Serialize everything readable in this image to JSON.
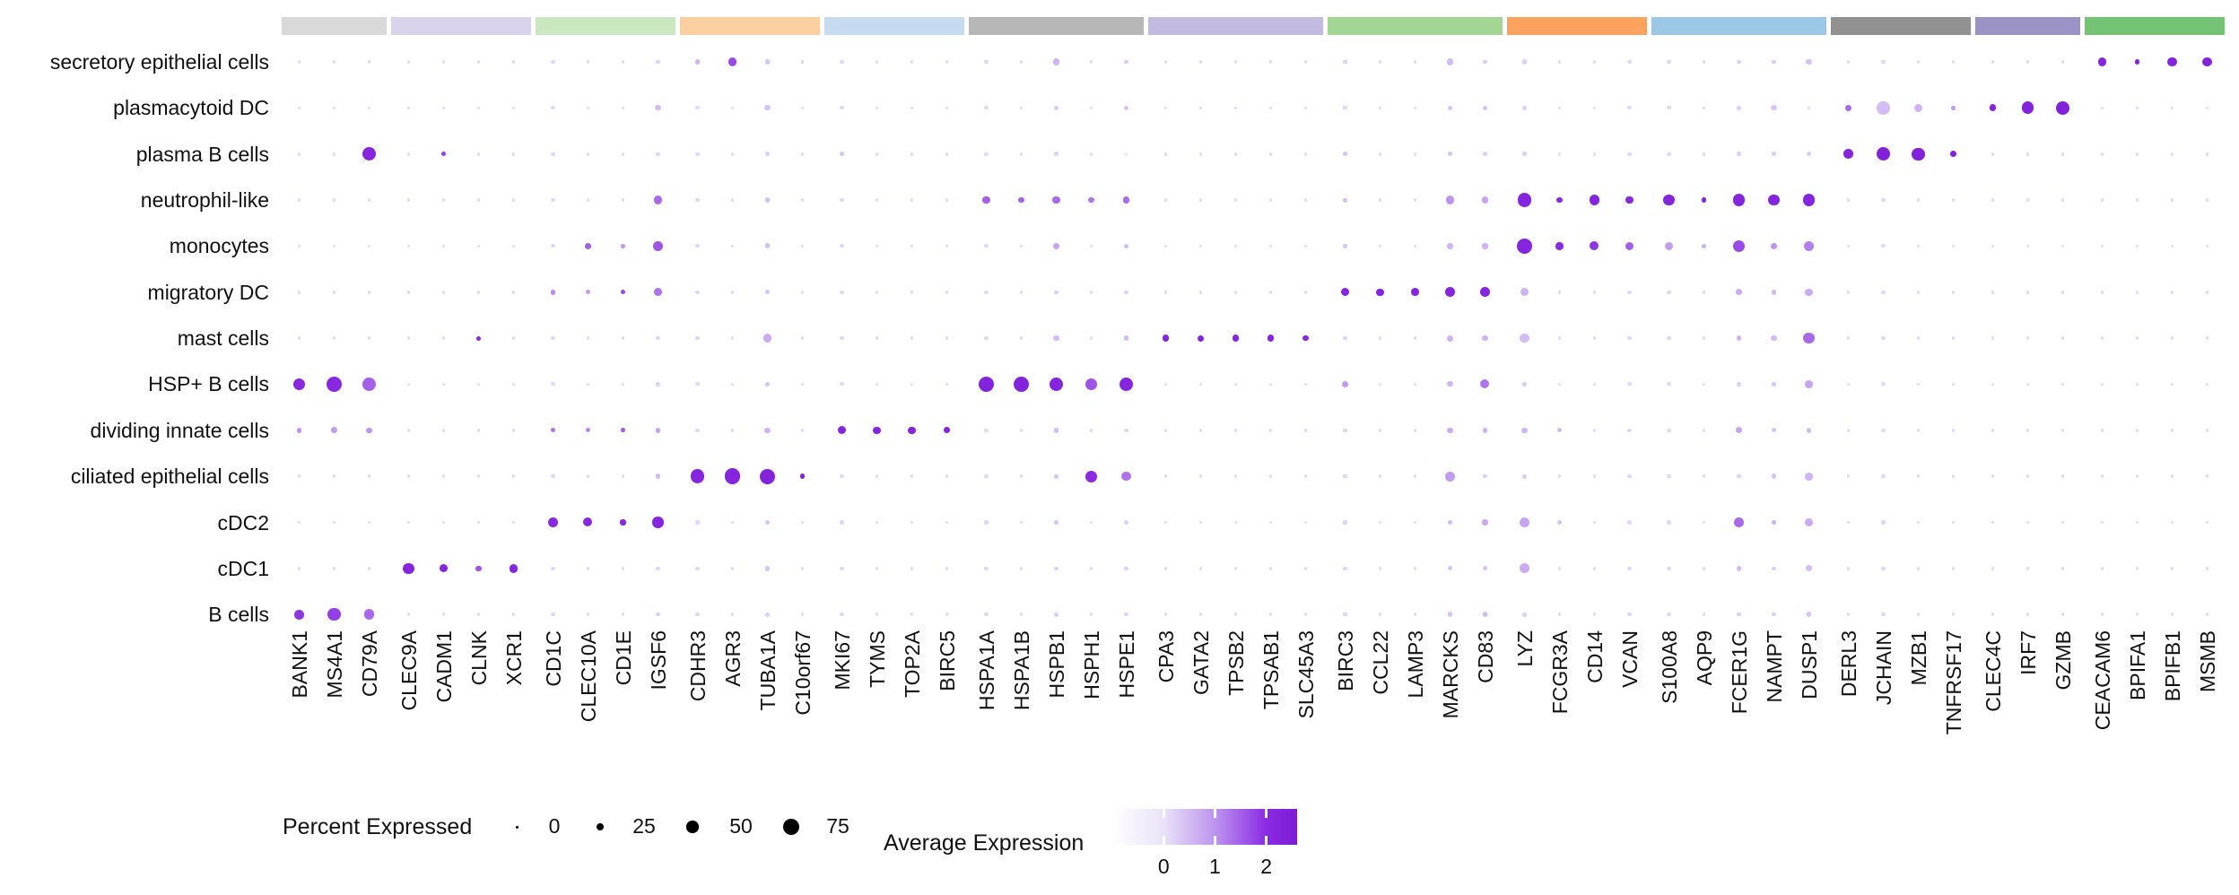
{
  "chart_data": {
    "type": "dotplot",
    "title": "",
    "xlabel": "",
    "ylabel": "",
    "rows_top_to_bottom": [
      "secretory epithelial cells",
      "plasmacytoid DC",
      "plasma B cells",
      "neutrophil-like",
      "monocytes",
      "migratory DC",
      "mast cells",
      "HSP+ B cells",
      "dividing innate cells",
      "ciliated epithelial cells",
      "cDC2",
      "cDC1",
      "B cells"
    ],
    "gene_groups": [
      {
        "color": "#d9d9d9",
        "genes": [
          "BANK1",
          "MS4A1",
          "CD79A"
        ]
      },
      {
        "color": "#d8d3ea",
        "genes": [
          "CLEC9A",
          "CADM1",
          "CLNK",
          "XCR1"
        ]
      },
      {
        "color": "#c9e7c0",
        "genes": [
          "CD1C",
          "CLEC10A",
          "CD1E",
          "IGSF6"
        ]
      },
      {
        "color": "#fbcfa0",
        "genes": [
          "CDHR3",
          "AGR3",
          "TUBA1A",
          "C10orf67"
        ]
      },
      {
        "color": "#c6dbf0",
        "genes": [
          "MKI67",
          "TYMS",
          "TOP2A",
          "BIRC5"
        ]
      },
      {
        "color": "#b7b7b7",
        "genes": [
          "HSPA1A",
          "HSPA1B",
          "HSPB1",
          "HSPH1",
          "HSPE1"
        ]
      },
      {
        "color": "#c2bbdf",
        "genes": [
          "CPA3",
          "GATA2",
          "TPSB2",
          "TPSAB1",
          "SLC45A3"
        ]
      },
      {
        "color": "#a3d694",
        "genes": [
          "BIRC3",
          "CCL22",
          "LAMP3",
          "MARCKS",
          "CD83"
        ]
      },
      {
        "color": "#fba35e",
        "genes": [
          "LYZ",
          "FCGR3A",
          "CD14",
          "VCAN"
        ]
      },
      {
        "color": "#9bc8e6",
        "genes": [
          "S100A8",
          "AQP9",
          "FCER1G",
          "NAMPT",
          "DUSP1"
        ]
      },
      {
        "color": "#919191",
        "genes": [
          "DERL3",
          "JCHAIN",
          "MZB1",
          "TNFRSF17"
        ]
      },
      {
        "color": "#9b93c6",
        "genes": [
          "CLEC4C",
          "IRF7",
          "GZMB"
        ]
      },
      {
        "color": "#74c374",
        "genes": [
          "CEACAM6",
          "BPIFA1",
          "BPIFB1",
          "MSMB"
        ]
      }
    ],
    "cell_values_note": "cells hold [percent_expressed, average_expression]; unlisted cells fall back to column_background then background",
    "background": [
      3,
      0.12
    ],
    "column_background": {
      "TUBA1A": [
        9,
        0.3
      ],
      "MARCKS": [
        9,
        0.3
      ],
      "DUSP1": [
        10,
        0.3
      ],
      "LYZ": [
        7,
        0.25
      ],
      "NAMPT": [
        7,
        0.25
      ],
      "CD83": [
        7,
        0.25
      ],
      "HSPB1": [
        7,
        0.25
      ],
      "HSPE1": [
        6,
        0.2
      ],
      "IGSF6": [
        6,
        0.2
      ],
      "FCER1G": [
        7,
        0.25
      ],
      "HSPA1A": [
        5,
        0.15
      ],
      "JCHAIN": [
        5,
        0.15
      ],
      "BIRC3": [
        5,
        0.2
      ],
      "MKI67": [
        5,
        0.15
      ],
      "CD1C": [
        5,
        0.15
      ],
      "CDHR3": [
        5,
        0.15
      ],
      "VCAN": [
        5,
        0.15
      ],
      "S100A8": [
        5,
        0.15
      ]
    },
    "cells": {
      "secretory epithelial cells": {
        "CDHR3": [
          10,
          0.6
        ],
        "AGR3": [
          32,
          1.7
        ],
        "TUBA1A": [
          13,
          0.4
        ],
        "C10orf67": [
          4,
          0.2
        ],
        "HSPB1": [
          20,
          0.6
        ],
        "HSPE1": [
          8,
          0.3
        ],
        "MARCKS": [
          20,
          0.5
        ],
        "CD83": [
          8,
          0.3
        ],
        "LYZ": [
          10,
          0.3
        ],
        "DUSP1": [
          18,
          0.4
        ],
        "NAMPT": [
          8,
          0.3
        ],
        "CEACAM6": [
          33,
          2.2
        ],
        "BPIFA1": [
          13,
          2.2
        ],
        "BPIFB1": [
          36,
          2.2
        ],
        "MSMB": [
          37,
          2.3
        ]
      },
      "plasmacytoid DC": {
        "IGSF6": [
          15,
          0.5
        ],
        "TUBA1A": [
          16,
          0.4
        ],
        "HSPB1": [
          10,
          0.3
        ],
        "HSPE1": [
          12,
          0.4
        ],
        "MARCKS": [
          13,
          0.4
        ],
        "CD83": [
          12,
          0.4
        ],
        "NAMPT": [
          16,
          0.4
        ],
        "DUSP1": [
          10,
          -0.2
        ],
        "LYZ": [
          8,
          0.25
        ],
        "DERL3": [
          22,
          1.4
        ],
        "JCHAIN": [
          60,
          0.5
        ],
        "MZB1": [
          32,
          0.6
        ],
        "TNFRSF17": [
          8,
          0.9
        ],
        "CLEC4C": [
          24,
          2.2
        ],
        "IRF7": [
          52,
          2.3
        ],
        "GZMB": [
          58,
          2.4
        ]
      },
      "plasma B cells": {
        "CD79A": [
          60,
          2.2
        ],
        "CADM1": [
          10,
          1.8
        ],
        "MKI67": [
          9,
          0.4
        ],
        "HSPE1": [
          6,
          -0.3
        ],
        "BIRC3": [
          9,
          0.4
        ],
        "MARCKS": [
          11,
          0.4
        ],
        "DUSP1": [
          11,
          0.3
        ],
        "DERL3": [
          38,
          2.2
        ],
        "JCHAIN": [
          58,
          2.4
        ],
        "MZB1": [
          55,
          2.4
        ],
        "TNFRSF17": [
          22,
          2.3
        ]
      },
      "neutrophil-like": {
        "IGSF6": [
          30,
          1.4
        ],
        "TUBA1A": [
          14,
          0.5
        ],
        "HSPA1A": [
          26,
          1.5
        ],
        "HSPA1B": [
          18,
          1.5
        ],
        "HSPB1": [
          26,
          1.4
        ],
        "HSPH1": [
          18,
          1.3
        ],
        "HSPE1": [
          24,
          1.4
        ],
        "BIRC3": [
          10,
          0.5
        ],
        "MARCKS": [
          30,
          1.0
        ],
        "CD83": [
          22,
          0.8
        ],
        "LYZ": [
          62,
          2.2
        ],
        "FCGR3A": [
          18,
          2.1
        ],
        "CD14": [
          40,
          2.2
        ],
        "VCAN": [
          28,
          2.1
        ],
        "S100A8": [
          48,
          2.2
        ],
        "AQP9": [
          14,
          2.2
        ],
        "FCER1G": [
          52,
          2.2
        ],
        "NAMPT": [
          48,
          2.2
        ],
        "DUSP1": [
          50,
          2.2
        ]
      },
      "monocytes": {
        "CLEC10A": [
          18,
          1.5
        ],
        "CD1E": [
          7,
          0.9
        ],
        "IGSF6": [
          40,
          1.6
        ],
        "TUBA1A": [
          14,
          0.5
        ],
        "HSPB1": [
          22,
          0.8
        ],
        "HSPE1": [
          12,
          0.5
        ],
        "MARCKS": [
          18,
          0.6
        ],
        "CD83": [
          16,
          0.6
        ],
        "LYZ": [
          68,
          2.2
        ],
        "FCGR3A": [
          26,
          2.0
        ],
        "CD14": [
          34,
          1.9
        ],
        "VCAN": [
          30,
          1.5
        ],
        "S100A8": [
          30,
          0.9
        ],
        "AQP9": [
          7,
          0.6
        ],
        "FCER1G": [
          52,
          1.7
        ],
        "NAMPT": [
          20,
          1.0
        ],
        "DUSP1": [
          42,
          1.2
        ],
        "BIRC3": [
          8,
          0.4
        ]
      },
      "migratory DC": {
        "CD1C": [
          14,
          1.1
        ],
        "CLEC10A": [
          12,
          0.9
        ],
        "CD1E": [
          9,
          1.7
        ],
        "IGSF6": [
          28,
          1.3
        ],
        "TUBA1A": [
          12,
          0.4
        ],
        "BIRC3": [
          30,
          2.2
        ],
        "CCL22": [
          26,
          2.2
        ],
        "LAMP3": [
          28,
          2.2
        ],
        "MARCKS": [
          38,
          2.2
        ],
        "CD83": [
          38,
          2.2
        ],
        "LYZ": [
          30,
          0.6
        ],
        "FCER1G": [
          20,
          0.7
        ],
        "NAMPT": [
          13,
          0.5
        ],
        "DUSP1": [
          26,
          0.7
        ]
      },
      "mast cells": {
        "CLNK": [
          9,
          2.0
        ],
        "TUBA1A": [
          32,
          0.7
        ],
        "HSPB1": [
          16,
          0.5
        ],
        "HSPE1": [
          12,
          0.5
        ],
        "CPA3": [
          22,
          2.2
        ],
        "GATA2": [
          20,
          2.2
        ],
        "TPSB2": [
          22,
          2.2
        ],
        "TPSAB1": [
          22,
          2.2
        ],
        "SLC45A3": [
          15,
          2.1
        ],
        "MARCKS": [
          20,
          0.6
        ],
        "CD83": [
          16,
          0.6
        ],
        "LYZ": [
          36,
          0.5
        ],
        "FCER1G": [
          12,
          0.6
        ],
        "NAMPT": [
          15,
          0.5
        ],
        "DUSP1": [
          45,
          1.4
        ]
      },
      "HSP+ B cells": {
        "BANK1": [
          52,
          2.1
        ],
        "MS4A1": [
          72,
          2.1
        ],
        "CD79A": [
          58,
          1.5
        ],
        "TUBA1A": [
          12,
          0.4
        ],
        "HSPA1A": [
          72,
          2.3
        ],
        "HSPA1B": [
          72,
          2.3
        ],
        "HSPB1": [
          62,
          2.2
        ],
        "HSPH1": [
          48,
          1.6
        ],
        "HSPE1": [
          62,
          2.2
        ],
        "BIRC3": [
          20,
          0.9
        ],
        "MARCKS": [
          15,
          0.6
        ],
        "CD83": [
          34,
          1.3
        ],
        "LYZ": [
          9,
          0.3
        ],
        "NAMPT": [
          12,
          0.4
        ],
        "DUSP1": [
          28,
          0.8
        ]
      },
      "dividing innate cells": {
        "BANK1": [
          14,
          1.0
        ],
        "MS4A1": [
          20,
          0.9
        ],
        "CD79A": [
          16,
          1.0
        ],
        "CD1C": [
          11,
          1.3
        ],
        "CLEC10A": [
          11,
          1.1
        ],
        "CD1E": [
          8,
          1.5
        ],
        "IGSF6": [
          14,
          0.8
        ],
        "TUBA1A": [
          16,
          0.6
        ],
        "MKI67": [
          30,
          2.2
        ],
        "TYMS": [
          26,
          2.2
        ],
        "TOP2A": [
          26,
          2.2
        ],
        "BIRC5": [
          18,
          2.2
        ],
        "HSPB1": [
          12,
          0.5
        ],
        "MARCKS": [
          16,
          0.7
        ],
        "CD83": [
          12,
          0.6
        ],
        "LYZ": [
          16,
          0.6
        ],
        "FCGR3A": [
          10,
          0.5
        ],
        "FCER1G": [
          20,
          0.8
        ],
        "NAMPT": [
          10,
          0.4
        ],
        "DUSP1": [
          14,
          0.5
        ]
      },
      "ciliated epithelial cells": {
        "CDHR3": [
          60,
          2.2
        ],
        "AGR3": [
          72,
          2.2
        ],
        "TUBA1A": [
          68,
          2.3
        ],
        "C10orf67": [
          14,
          2.2
        ],
        "IGSF6": [
          14,
          0.5
        ],
        "HSPB1": [
          10,
          0.4
        ],
        "HSPH1": [
          48,
          2.0
        ],
        "HSPE1": [
          36,
          1.3
        ],
        "MARCKS": [
          40,
          0.9
        ],
        "LYZ": [
          10,
          0.3
        ],
        "NAMPT": [
          12,
          0.4
        ],
        "DUSP1": [
          28,
          0.6
        ]
      },
      "cDC2": {
        "CD1C": [
          36,
          2.1
        ],
        "CLEC10A": [
          34,
          2.1
        ],
        "CD1E": [
          15,
          2.1
        ],
        "IGSF6": [
          46,
          2.2
        ],
        "TUBA1A": [
          13,
          0.4
        ],
        "HSPB1": [
          10,
          0.4
        ],
        "MARCKS": [
          13,
          0.5
        ],
        "CD83": [
          16,
          0.7
        ],
        "LYZ": [
          42,
          0.8
        ],
        "FCGR3A": [
          10,
          0.4
        ],
        "FCER1G": [
          38,
          1.4
        ],
        "NAMPT": [
          14,
          0.6
        ],
        "DUSP1": [
          28,
          0.7
        ]
      },
      "cDC1": {
        "CLEC9A": [
          46,
          2.2
        ],
        "CADM1": [
          30,
          2.2
        ],
        "CLNK": [
          16,
          1.6
        ],
        "XCR1": [
          32,
          2.2
        ],
        "TUBA1A": [
          12,
          0.4
        ],
        "MARCKS": [
          11,
          0.4
        ],
        "CD83": [
          10,
          0.4
        ],
        "LYZ": [
          40,
          0.7
        ],
        "FCER1G": [
          14,
          0.5
        ],
        "DUSP1": [
          20,
          0.5
        ]
      },
      "B cells": {
        "BANK1": [
          38,
          1.9
        ],
        "MS4A1": [
          55,
          1.8
        ],
        "CD79A": [
          42,
          1.4
        ],
        "TUBA1A": [
          10,
          0.3
        ],
        "HSPB1": [
          10,
          0.3
        ],
        "MARCKS": [
          12,
          0.4
        ],
        "CD83": [
          12,
          0.5
        ],
        "LYZ": [
          8,
          0.25
        ],
        "DUSP1": [
          14,
          0.4
        ]
      }
    },
    "legend": {
      "percent": {
        "title": "Percent Expressed",
        "items": [
          {
            "label": "0",
            "pct": 0
          },
          {
            "label": "25",
            "pct": 25
          },
          {
            "label": "50",
            "pct": 50
          },
          {
            "label": "75",
            "pct": 75
          }
        ]
      },
      "expression": {
        "title": "Average Expression",
        "ticks": [
          {
            "label": "0",
            "value": 0
          },
          {
            "label": "1",
            "value": 1
          },
          {
            "label": "2",
            "value": 2
          }
        ],
        "range": [
          -1,
          2.6
        ]
      }
    },
    "color_scale_stops": [
      {
        "value": -1.0,
        "color": "#ffffff"
      },
      {
        "value": 0.0,
        "color": "#e9e2f8"
      },
      {
        "value": 1.0,
        "color": "#bd94ee"
      },
      {
        "value": 2.0,
        "color": "#8a2be2"
      },
      {
        "value": 2.6,
        "color": "#7c1cd6"
      }
    ],
    "legend_dot_color": "#000000",
    "grid": false,
    "legend_position": "bottom"
  }
}
